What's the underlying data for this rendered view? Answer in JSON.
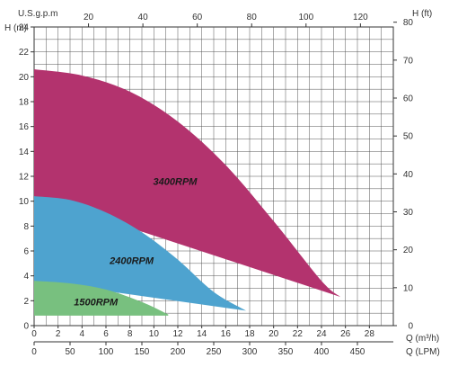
{
  "chart_data": {
    "type": "area",
    "axes": {
      "left": {
        "label": "H (m)",
        "range": [
          0,
          24
        ],
        "ticks": [
          0,
          2,
          4,
          6,
          8,
          10,
          12,
          14,
          16,
          18,
          20,
          22,
          24
        ]
      },
      "right": {
        "label": "H (ft)",
        "range": [
          0,
          78.74
        ],
        "ticks": [
          0,
          10,
          20,
          30,
          40,
          50,
          60,
          70,
          80
        ]
      },
      "bottom_primary": {
        "label": "Q (m³/h)",
        "range": [
          0,
          30
        ],
        "ticks": [
          0,
          2,
          4,
          6,
          8,
          10,
          12,
          14,
          16,
          18,
          20,
          22,
          24,
          26,
          28
        ]
      },
      "bottom_secondary": {
        "label": "Q (LPM)",
        "range": [
          0,
          500
        ],
        "ticks": [
          0,
          50,
          100,
          150,
          200,
          250,
          300,
          350,
          400,
          450
        ]
      },
      "top": {
        "label": "U.S.g.p.m",
        "range": [
          0,
          132.1
        ],
        "ticks": [
          20,
          40,
          60,
          80,
          100,
          120
        ]
      }
    },
    "grid": true,
    "series": [
      {
        "name": "3400RPM",
        "color": "#b3336e",
        "upper": {
          "x": [
            0,
            4,
            8,
            12,
            16,
            20,
            24,
            25.6
          ],
          "y": [
            20.6,
            20.1,
            18.8,
            16.4,
            12.9,
            8.4,
            3.6,
            2.3
          ]
        },
        "lower": {
          "x": [
            0,
            25.6
          ],
          "y": [
            10.4,
            2.3
          ]
        }
      },
      {
        "name": "2400RPM",
        "color": "#4ea3cf",
        "upper": {
          "x": [
            0,
            3,
            6,
            9,
            12,
            15,
            17.7
          ],
          "y": [
            10.4,
            10.1,
            9.1,
            7.5,
            5.3,
            2.7,
            1.2
          ]
        },
        "lower": {
          "x": [
            0,
            17.7
          ],
          "y": [
            3.6,
            1.2
          ]
        }
      },
      {
        "name": "1500RPM",
        "color": "#78c07f",
        "upper": {
          "x": [
            0,
            3,
            6,
            9,
            11.2
          ],
          "y": [
            3.6,
            3.4,
            2.9,
            1.9,
            0.9
          ]
        },
        "lower": {
          "x": [
            0,
            11.2
          ],
          "y": [
            0.8,
            0.8
          ]
        }
      }
    ]
  }
}
